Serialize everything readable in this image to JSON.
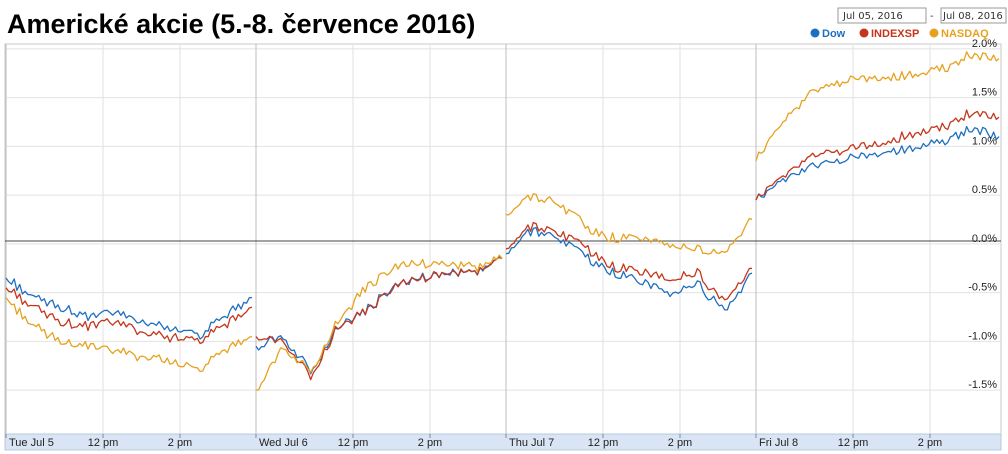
{
  "chart_data": {
    "type": "line",
    "title": "Americké akcie (5.-8. července 2016)",
    "date_range": {
      "start": "Jul 05, 2016",
      "separator": "-",
      "end": "Jul 08, 2016"
    },
    "x_tick_labels": [
      "Tue Jul 5",
      "12 pm",
      "2 pm",
      "Wed Jul 6",
      "12 pm",
      "2 pm",
      "Thu Jul 7",
      "12 pm",
      "2 pm",
      "Fri Jul 8",
      "12 pm",
      "2 pm"
    ],
    "y_tick_labels": [
      "2.0%",
      "1.5%",
      "1.0%",
      "0.5%",
      "0.0%",
      "-0.5%",
      "-1.0%",
      "-1.5%"
    ],
    "ylim": [
      -1.95,
      2.05
    ],
    "grid": true,
    "legend_position": "top-right",
    "series": [
      {
        "name": "Dow",
        "color": "#1f6fc0",
        "days": [
          [
            -0.35,
            -0.55,
            -0.65,
            -0.75,
            -0.7,
            -0.8,
            -0.85,
            -0.95,
            -0.75,
            -0.55
          ],
          [
            -1.05,
            -0.95,
            -1.3,
            -0.85,
            -0.7,
            -0.45,
            -0.35,
            -0.3,
            -0.3,
            -0.15
          ],
          [
            -0.1,
            0.15,
            0.05,
            -0.15,
            -0.3,
            -0.4,
            -0.5,
            -0.4,
            -0.7,
            -0.3
          ],
          [
            0.45,
            0.65,
            0.8,
            0.85,
            0.9,
            0.95,
            1.0,
            1.05,
            1.2,
            1.1
          ]
        ]
      },
      {
        "name": "INDEXSP",
        "color": "#c4361b",
        "days": [
          [
            -0.45,
            -0.65,
            -0.8,
            -0.85,
            -0.8,
            -0.9,
            -0.95,
            -1.0,
            -0.85,
            -0.65
          ],
          [
            -0.95,
            -1.0,
            -1.35,
            -0.85,
            -0.7,
            -0.45,
            -0.35,
            -0.3,
            -0.3,
            -0.15
          ],
          [
            -0.05,
            0.2,
            0.1,
            -0.05,
            -0.25,
            -0.3,
            -0.35,
            -0.3,
            -0.6,
            -0.25
          ],
          [
            0.45,
            0.7,
            0.9,
            0.95,
            1.0,
            1.05,
            1.15,
            1.2,
            1.35,
            1.3
          ]
        ]
      },
      {
        "name": "NASDAQ",
        "color": "#e6a21f",
        "days": [
          [
            -0.55,
            -0.85,
            -1.0,
            -1.05,
            -1.1,
            -1.15,
            -1.2,
            -1.3,
            -1.1,
            -0.95
          ],
          [
            -1.5,
            -1.05,
            -1.3,
            -0.8,
            -0.45,
            -0.25,
            -0.2,
            -0.2,
            -0.25,
            -0.15
          ],
          [
            0.3,
            0.5,
            0.4,
            0.15,
            0.05,
            0.05,
            0.0,
            -0.05,
            -0.1,
            0.25
          ],
          [
            0.85,
            1.25,
            1.55,
            1.65,
            1.7,
            1.7,
            1.75,
            1.8,
            1.95,
            1.9
          ]
        ]
      }
    ]
  }
}
